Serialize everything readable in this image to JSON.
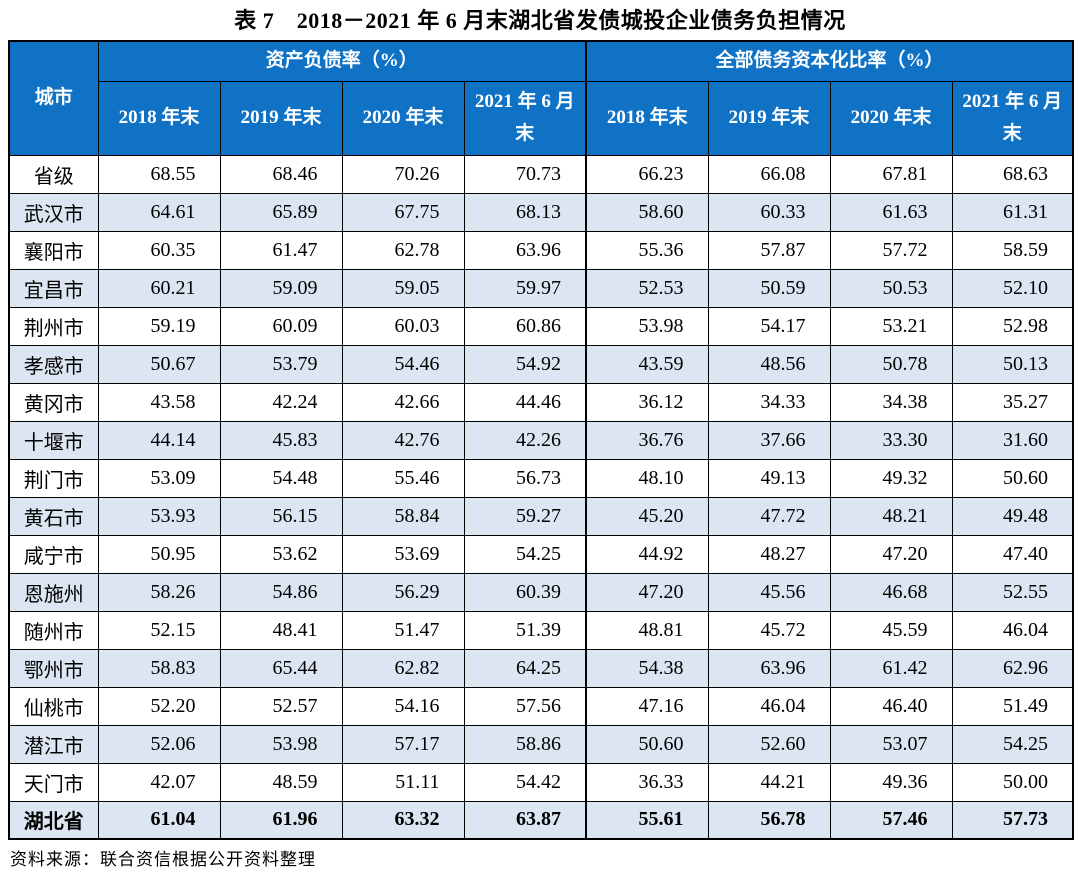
{
  "title": "表 7　2018－2021 年 6 月末湖北省发债城投企业债务负担情况",
  "source_note": "资料来源：联合资信根据公开资料整理",
  "colors": {
    "header_bg": "#0F72C4",
    "header_text": "#FFFFFF",
    "stripe_bg": "#DCE6F2"
  },
  "table": {
    "city_header": "城市",
    "groups": [
      {
        "label": "资产负债率（%）"
      },
      {
        "label": "全部债务资本化比率（%）"
      }
    ],
    "sub_headers": [
      "2018 年末",
      "2019 年末",
      "2020 年末",
      "2021 年 6 月末"
    ],
    "rows": [
      {
        "city": "省级",
        "alr": [
          "68.55",
          "68.46",
          "70.26",
          "70.73"
        ],
        "dcr": [
          "66.23",
          "66.08",
          "67.81",
          "68.63"
        ],
        "bold": false
      },
      {
        "city": "武汉市",
        "alr": [
          "64.61",
          "65.89",
          "67.75",
          "68.13"
        ],
        "dcr": [
          "58.60",
          "60.33",
          "61.63",
          "61.31"
        ],
        "bold": false
      },
      {
        "city": "襄阳市",
        "alr": [
          "60.35",
          "61.47",
          "62.78",
          "63.96"
        ],
        "dcr": [
          "55.36",
          "57.87",
          "57.72",
          "58.59"
        ],
        "bold": false
      },
      {
        "city": "宜昌市",
        "alr": [
          "60.21",
          "59.09",
          "59.05",
          "59.97"
        ],
        "dcr": [
          "52.53",
          "50.59",
          "50.53",
          "52.10"
        ],
        "bold": false
      },
      {
        "city": "荆州市",
        "alr": [
          "59.19",
          "60.09",
          "60.03",
          "60.86"
        ],
        "dcr": [
          "53.98",
          "54.17",
          "53.21",
          "52.98"
        ],
        "bold": false
      },
      {
        "city": "孝感市",
        "alr": [
          "50.67",
          "53.79",
          "54.46",
          "54.92"
        ],
        "dcr": [
          "43.59",
          "48.56",
          "50.78",
          "50.13"
        ],
        "bold": false
      },
      {
        "city": "黄冈市",
        "alr": [
          "43.58",
          "42.24",
          "42.66",
          "44.46"
        ],
        "dcr": [
          "36.12",
          "34.33",
          "34.38",
          "35.27"
        ],
        "bold": false
      },
      {
        "city": "十堰市",
        "alr": [
          "44.14",
          "45.83",
          "42.76",
          "42.26"
        ],
        "dcr": [
          "36.76",
          "37.66",
          "33.30",
          "31.60"
        ],
        "bold": false
      },
      {
        "city": "荆门市",
        "alr": [
          "53.09",
          "54.48",
          "55.46",
          "56.73"
        ],
        "dcr": [
          "48.10",
          "49.13",
          "49.32",
          "50.60"
        ],
        "bold": false
      },
      {
        "city": "黄石市",
        "alr": [
          "53.93",
          "56.15",
          "58.84",
          "59.27"
        ],
        "dcr": [
          "45.20",
          "47.72",
          "48.21",
          "49.48"
        ],
        "bold": false
      },
      {
        "city": "咸宁市",
        "alr": [
          "50.95",
          "53.62",
          "53.69",
          "54.25"
        ],
        "dcr": [
          "44.92",
          "48.27",
          "47.20",
          "47.40"
        ],
        "bold": false
      },
      {
        "city": "恩施州",
        "alr": [
          "58.26",
          "54.86",
          "56.29",
          "60.39"
        ],
        "dcr": [
          "47.20",
          "45.56",
          "46.68",
          "52.55"
        ],
        "bold": false
      },
      {
        "city": "随州市",
        "alr": [
          "52.15",
          "48.41",
          "51.47",
          "51.39"
        ],
        "dcr": [
          "48.81",
          "45.72",
          "45.59",
          "46.04"
        ],
        "bold": false
      },
      {
        "city": "鄂州市",
        "alr": [
          "58.83",
          "65.44",
          "62.82",
          "64.25"
        ],
        "dcr": [
          "54.38",
          "63.96",
          "61.42",
          "62.96"
        ],
        "bold": false
      },
      {
        "city": "仙桃市",
        "alr": [
          "52.20",
          "52.57",
          "54.16",
          "57.56"
        ],
        "dcr": [
          "47.16",
          "46.04",
          "46.40",
          "51.49"
        ],
        "bold": false
      },
      {
        "city": "潜江市",
        "alr": [
          "52.06",
          "53.98",
          "57.17",
          "58.86"
        ],
        "dcr": [
          "50.60",
          "52.60",
          "53.07",
          "54.25"
        ],
        "bold": false
      },
      {
        "city": "天门市",
        "alr": [
          "42.07",
          "48.59",
          "51.11",
          "54.42"
        ],
        "dcr": [
          "36.33",
          "44.21",
          "49.36",
          "50.00"
        ],
        "bold": false
      },
      {
        "city": "湖北省",
        "alr": [
          "61.04",
          "61.96",
          "63.32",
          "63.87"
        ],
        "dcr": [
          "55.61",
          "56.78",
          "57.46",
          "57.73"
        ],
        "bold": true
      }
    ]
  }
}
